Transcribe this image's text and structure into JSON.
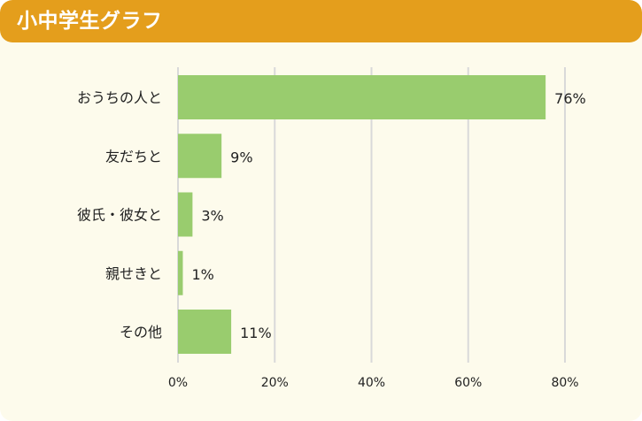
{
  "header": {
    "title": "小中学生グラフ"
  },
  "colors": {
    "header_bg": "#e49e1c",
    "card_bg": "#fdfbec",
    "bar": "#99cc6e",
    "grid": "#d9d9d9"
  },
  "chart_data": {
    "type": "bar",
    "orientation": "horizontal",
    "categories": [
      "おうちの人と",
      "友だちと",
      "彼氏・彼女と",
      "親せきと",
      "その他"
    ],
    "values": [
      76,
      9,
      3,
      1,
      11
    ],
    "value_labels": [
      "76%",
      "9%",
      "3%",
      "1%",
      "11%"
    ],
    "xlim": [
      0,
      80
    ],
    "xticks": [
      0,
      20,
      40,
      60,
      80
    ],
    "xtick_labels": [
      "0%",
      "20%",
      "40%",
      "60%",
      "80%"
    ],
    "grid": true,
    "legend": "none"
  }
}
